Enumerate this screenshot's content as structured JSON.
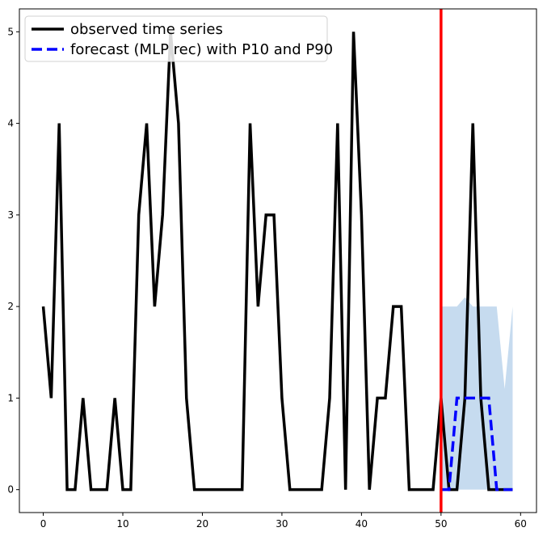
{
  "chart_data": {
    "type": "line",
    "title": "",
    "xlabel": "",
    "ylabel": "",
    "xlim": [
      -3,
      62
    ],
    "ylim": [
      -0.25,
      5.25
    ],
    "xticks": [
      0,
      10,
      20,
      30,
      40,
      50,
      60
    ],
    "yticks": [
      0,
      1,
      2,
      3,
      4,
      5
    ],
    "grid": false,
    "legend_position": "top-left",
    "series": [
      {
        "name": "observed time series",
        "color": "#000000",
        "style": "solid",
        "x": [
          0,
          1,
          2,
          3,
          4,
          5,
          6,
          7,
          8,
          9,
          10,
          11,
          12,
          13,
          14,
          15,
          16,
          17,
          18,
          19,
          20,
          21,
          22,
          23,
          24,
          25,
          26,
          27,
          28,
          29,
          30,
          31,
          32,
          33,
          34,
          35,
          36,
          37,
          38,
          39,
          40,
          41,
          42,
          43,
          44,
          45,
          46,
          47,
          48,
          49,
          50,
          51,
          52,
          53,
          54,
          55,
          56,
          57,
          58,
          59
        ],
        "values": [
          2,
          1,
          4,
          0,
          0,
          1,
          0,
          0,
          0,
          1,
          0,
          0,
          3,
          4,
          2,
          3,
          5,
          4,
          1,
          0,
          0,
          0,
          0,
          0,
          0,
          0,
          4,
          2,
          3,
          3,
          1,
          0,
          0,
          0,
          0,
          0,
          1,
          4,
          0,
          5,
          3,
          0,
          1,
          1,
          2,
          2,
          0,
          0,
          0,
          0,
          1,
          0,
          0,
          1,
          4,
          1,
          0,
          0,
          0,
          0
        ]
      },
      {
        "name": "forecast (MLP rec) with P10 and P90",
        "color": "#0000ff",
        "style": "dashed",
        "x": [
          50,
          51,
          52,
          53,
          54,
          55,
          56,
          57,
          58,
          59
        ],
        "values": [
          0,
          0,
          1,
          1,
          1,
          1,
          1,
          0,
          0,
          0
        ]
      }
    ],
    "band": {
      "color": "#c6dbef",
      "x": [
        50,
        51,
        52,
        53,
        54,
        55,
        56,
        57,
        58,
        59
      ],
      "lower": [
        0,
        0,
        0,
        0,
        0,
        0,
        0,
        0,
        0,
        0
      ],
      "upper": [
        2,
        2,
        2,
        2.1,
        2,
        2,
        2,
        2,
        1.1,
        2
      ]
    },
    "vline": {
      "x": 50,
      "color": "#ff0000"
    }
  }
}
